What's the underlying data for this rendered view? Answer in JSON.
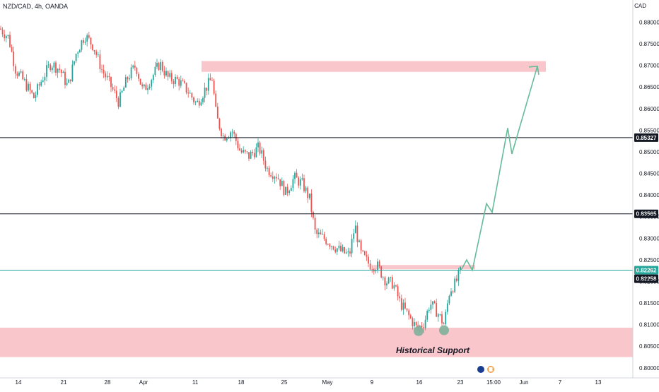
{
  "header": {
    "symbol": "NZD/CAD, 4h, OANDA",
    "currency": "CAD"
  },
  "annotation": {
    "support_label": "Historical Support"
  },
  "colors": {
    "up": "#26a69a",
    "down": "#ef5350",
    "zone": "#f8bcc2",
    "projection": "#66bb9a",
    "level_line": "#131722",
    "green_level": "#26a69a"
  },
  "chart_data": {
    "type": "candlestick",
    "title": "NZD/CAD, 4h, OANDA",
    "ylabel": "CAD",
    "ylim": [
      0.7985,
      0.8835
    ],
    "y_ticks": [
      "0.88000",
      "0.87500",
      "0.87000",
      "0.86500",
      "0.86000",
      "0.85500",
      "0.85000",
      "0.84500",
      "0.84000",
      "0.83500",
      "0.83000",
      "0.82500",
      "0.82000",
      "0.81500",
      "0.81000",
      "0.80500",
      "0.80000"
    ],
    "x_ticks": [
      "14",
      "21",
      "28",
      "Apr",
      "11",
      "18",
      "25",
      "May",
      "9",
      "16",
      "23",
      "15:00",
      "Jun",
      "7",
      "13"
    ],
    "levels": [
      {
        "label": "0.85327",
        "value": 0.85327,
        "style": "dark"
      },
      {
        "label": "0.83565",
        "value": 0.83565,
        "style": "dark"
      },
      {
        "label": "0.82262",
        "value": 0.82262,
        "style": "green"
      },
      {
        "label": "0.82258",
        "value": 0.82258,
        "style": "dark"
      }
    ],
    "zones": [
      {
        "name": "resistance",
        "from": 0.8685,
        "to": 0.871
      },
      {
        "name": "small-resistance",
        "from": 0.8228,
        "to": 0.8238
      },
      {
        "name": "historical-support",
        "from": 0.8025,
        "to": 0.8093
      }
    ],
    "price_path": [
      [
        0,
        0.8785
      ],
      [
        12,
        0.8765
      ],
      [
        22,
        0.869
      ],
      [
        35,
        0.866
      ],
      [
        48,
        0.8625
      ],
      [
        60,
        0.867
      ],
      [
        72,
        0.8705
      ],
      [
        85,
        0.869
      ],
      [
        96,
        0.865
      ],
      [
        108,
        0.873
      ],
      [
        120,
        0.877
      ],
      [
        132,
        0.8745
      ],
      [
        144,
        0.869
      ],
      [
        156,
        0.8655
      ],
      [
        168,
        0.8615
      ],
      [
        180,
        0.867
      ],
      [
        192,
        0.87
      ],
      [
        202,
        0.864
      ],
      [
        214,
        0.867
      ],
      [
        226,
        0.8705
      ],
      [
        238,
        0.867
      ],
      [
        252,
        0.8665
      ],
      [
        266,
        0.864
      ],
      [
        278,
        0.861
      ],
      [
        290,
        0.8645
      ],
      [
        300,
        0.867
      ],
      [
        306,
        0.858
      ],
      [
        316,
        0.8535
      ],
      [
        328,
        0.855
      ],
      [
        340,
        0.85
      ],
      [
        352,
        0.849
      ],
      [
        366,
        0.851
      ],
      [
        378,
        0.846
      ],
      [
        392,
        0.8445
      ],
      [
        404,
        0.8405
      ],
      [
        416,
        0.844
      ],
      [
        428,
        0.8425
      ],
      [
        438,
        0.839
      ],
      [
        446,
        0.831
      ],
      [
        458,
        0.83
      ],
      [
        470,
        0.8285
      ],
      [
        482,
        0.827
      ],
      [
        494,
        0.826
      ],
      [
        502,
        0.833
      ],
      [
        510,
        0.8265
      ],
      [
        522,
        0.824
      ],
      [
        534,
        0.8235
      ],
      [
        546,
        0.82
      ],
      [
        556,
        0.8195
      ],
      [
        566,
        0.815
      ],
      [
        578,
        0.812
      ],
      [
        590,
        0.809
      ],
      [
        600,
        0.8105
      ],
      [
        608,
        0.815
      ],
      [
        618,
        0.813
      ],
      [
        628,
        0.81
      ],
      [
        636,
        0.818
      ],
      [
        644,
        0.8195
      ],
      [
        652,
        0.8226
      ]
    ],
    "projection": [
      [
        652,
        0.8226
      ],
      [
        660,
        0.825
      ],
      [
        668,
        0.8226
      ],
      [
        688,
        0.838
      ],
      [
        696,
        0.836
      ],
      [
        718,
        0.8555
      ],
      [
        724,
        0.8495
      ],
      [
        760,
        0.8698
      ]
    ],
    "markers": [
      {
        "name": "bottom-1",
        "value": 0.809
      },
      {
        "name": "bottom-2",
        "value": 0.8092
      }
    ]
  }
}
